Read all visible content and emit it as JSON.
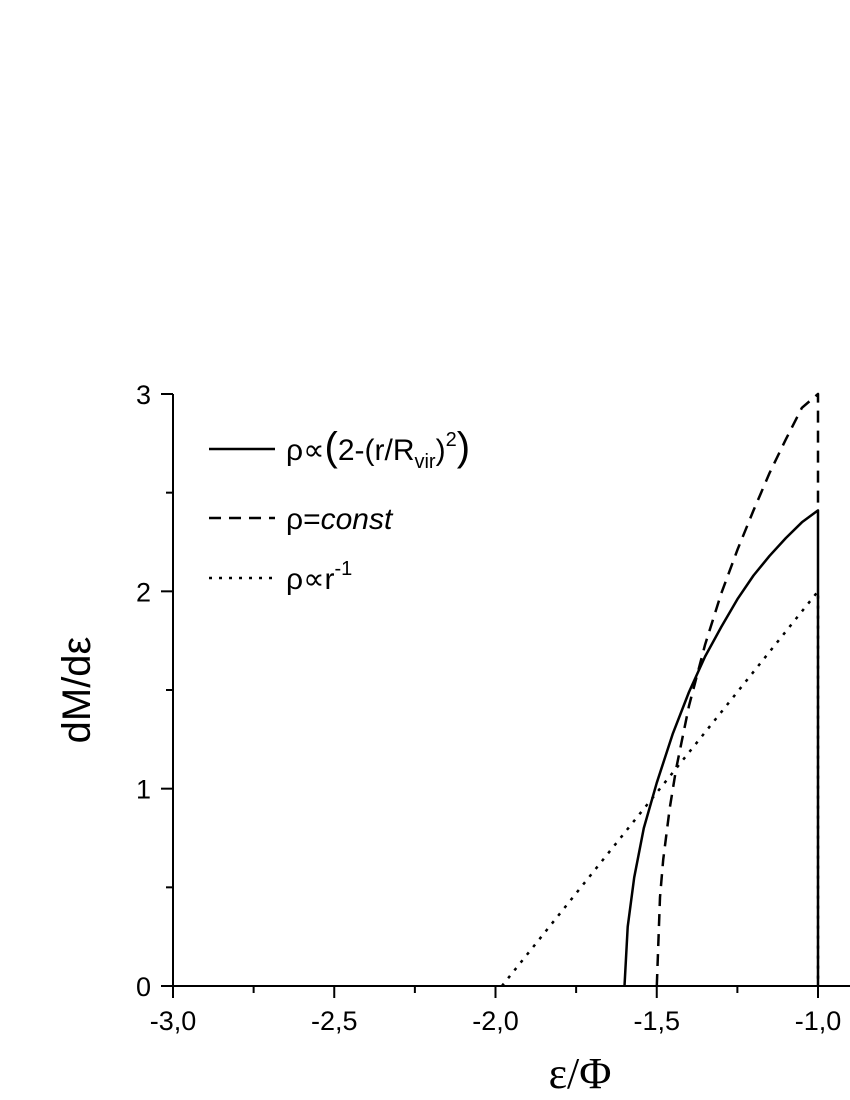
{
  "chart_data": {
    "type": "line",
    "xlabel": "ε/Φ",
    "ylabel": "dM/dε",
    "xlim": [
      -3.0,
      -1.0
    ],
    "ylim": [
      0,
      3
    ],
    "x_ticks": [
      -3.0,
      -2.5,
      -2.0,
      -1.5,
      -1.0
    ],
    "x_tick_labels": [
      "-3,0",
      "-2,5",
      "-2,0",
      "-1,5",
      "-1,0"
    ],
    "y_ticks": [
      0,
      1,
      2,
      3
    ],
    "y_tick_labels": [
      "0",
      "1",
      "2",
      "3"
    ],
    "legend_position": "top-left",
    "series": [
      {
        "name": "ρ∝(2-(r/R_vir)^2)",
        "legend": {
          "prefix": "ρ∝",
          "open": "(",
          "body": "2-(r/R",
          "sub": "vir",
          "close_inner": ")",
          "sup": "2",
          "close": ")"
        },
        "style": "solid",
        "x": [
          -1.6,
          -1.59,
          -1.57,
          -1.54,
          -1.5,
          -1.45,
          -1.4,
          -1.35,
          -1.3,
          -1.25,
          -1.2,
          -1.15,
          -1.1,
          -1.05,
          -1.0,
          -1.0
        ],
        "y": [
          0.0,
          0.3,
          0.55,
          0.8,
          1.03,
          1.28,
          1.49,
          1.67,
          1.82,
          1.96,
          2.08,
          2.18,
          2.27,
          2.35,
          2.41,
          0.0
        ]
      },
      {
        "name": "ρ=const",
        "legend": {
          "prefix": "ρ=",
          "italic": "const"
        },
        "style": "dashed",
        "x": [
          -1.5,
          -1.49,
          -1.48,
          -1.46,
          -1.44,
          -1.4,
          -1.35,
          -1.3,
          -1.25,
          -1.2,
          -1.15,
          -1.1,
          -1.05,
          -1.0,
          -1.0
        ],
        "y": [
          0.0,
          0.45,
          0.64,
          0.9,
          1.1,
          1.42,
          1.73,
          1.99,
          2.21,
          2.41,
          2.6,
          2.77,
          2.93,
          3.0,
          2.41
        ],
        "line_to_axis": true
      },
      {
        "name": "ρ∝r^-1",
        "legend": {
          "prefix": "ρ∝r",
          "sup": "-1"
        },
        "style": "dotted",
        "x": [
          -1.98,
          -1.0,
          -1.0
        ],
        "y": [
          0.0,
          2.0,
          0.0
        ]
      }
    ]
  }
}
